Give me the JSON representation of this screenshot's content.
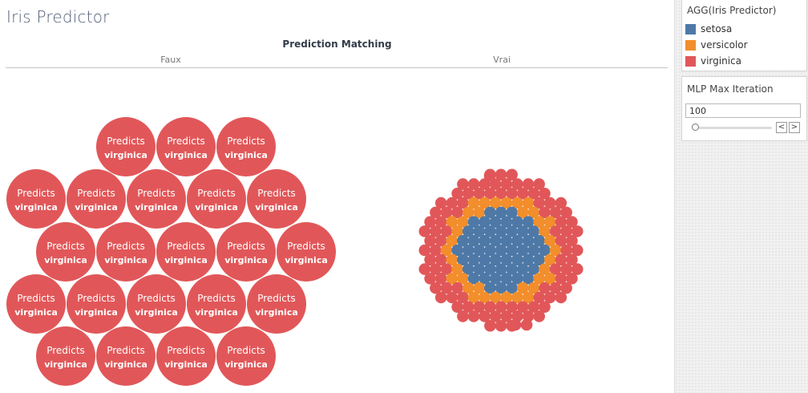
{
  "app": {
    "title": "Iris Predictor"
  },
  "chart_data": {
    "type": "packed-bubble",
    "title": "Prediction Matching",
    "columns": [
      "Faux",
      "Vrai"
    ],
    "bubble_label_line1": "Predicts",
    "faux": {
      "predicted_class": "virginica",
      "count": 23
    },
    "vrai": {
      "classes": [
        "setosa",
        "versicolor",
        "virginica"
      ]
    }
  },
  "legend": {
    "title": "AGG(Iris Predictor)",
    "items": [
      {
        "label": "setosa",
        "color": "#4e79a7"
      },
      {
        "label": "versicolor",
        "color": "#f28e2b"
      },
      {
        "label": "virginica",
        "color": "#e15759"
      }
    ]
  },
  "parameter": {
    "title": "MLP Max Iteration",
    "value": "100",
    "prev_symbol": "<",
    "next_symbol": ">"
  }
}
